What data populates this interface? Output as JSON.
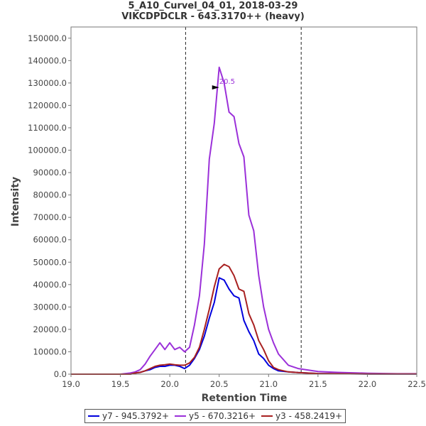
{
  "title_lines": [
    "5_A10_Curvel_04_01, 2018-03-29",
    "VIKCDPDCLR - 643.3170++ (heavy)"
  ],
  "chart_data": {
    "type": "line",
    "xlabel": "Retention Time",
    "ylabel": "Intensity",
    "xlim": [
      19.0,
      22.5
    ],
    "ylim": [
      0,
      155000
    ],
    "x_ticks": [
      19.0,
      19.5,
      20.0,
      20.5,
      21.0,
      21.5,
      22.0,
      22.5
    ],
    "x_tick_labels": [
      "19.0",
      "19.5",
      "20.0",
      "20.5",
      "21.0",
      "21.5",
      "22.0",
      "22.5"
    ],
    "y_ticks": [
      0,
      10000,
      20000,
      30000,
      40000,
      50000,
      60000,
      70000,
      80000,
      90000,
      100000,
      110000,
      120000,
      130000,
      140000,
      150000
    ],
    "y_tick_labels": [
      "0.0",
      "10000.0",
      "20000.0",
      "30000.0",
      "40000.0",
      "50000.0",
      "60000.0",
      "70000.0",
      "80000.0",
      "90000.0",
      "100000.0",
      "110000.0",
      "120000.0",
      "130000.0",
      "140000.0",
      "150000.0"
    ],
    "grid": false,
    "legend_position": "bottom",
    "vertical_markers": [
      20.16,
      21.33
    ],
    "peak_annotation": {
      "label": "20.5",
      "x": 20.5,
      "y": 128000,
      "color": "#9b30d9"
    },
    "series": [
      {
        "name": "y7 - 945.3792+",
        "color": "#0000dd",
        "x": [
          19.0,
          19.1,
          19.2,
          19.3,
          19.4,
          19.5,
          19.6,
          19.65,
          19.7,
          19.75,
          19.8,
          19.85,
          19.9,
          19.95,
          20.0,
          20.05,
          20.1,
          20.15,
          20.2,
          20.25,
          20.3,
          20.35,
          20.4,
          20.45,
          20.5,
          20.55,
          20.6,
          20.65,
          20.7,
          20.75,
          20.8,
          20.85,
          20.9,
          20.95,
          21.0,
          21.05,
          21.1,
          21.2,
          21.3,
          21.5,
          21.7,
          22.0,
          22.3,
          22.5
        ],
        "y": [
          0,
          0,
          0,
          0,
          0,
          0,
          0,
          500,
          800,
          1500,
          2000,
          3000,
          3500,
          3500,
          4000,
          4000,
          3500,
          2500,
          4000,
          7000,
          11000,
          17000,
          25000,
          32000,
          43000,
          42000,
          38000,
          35000,
          34000,
          24000,
          19000,
          15000,
          9000,
          7000,
          4000,
          2500,
          1500,
          1000,
          700,
          300,
          200,
          100,
          100,
          100
        ]
      },
      {
        "name": "y5 - 670.3216+",
        "color": "#9b30d9",
        "x": [
          19.0,
          19.1,
          19.2,
          19.3,
          19.4,
          19.5,
          19.6,
          19.65,
          19.7,
          19.75,
          19.8,
          19.85,
          19.9,
          19.95,
          20.0,
          20.05,
          20.1,
          20.15,
          20.2,
          20.25,
          20.3,
          20.35,
          20.4,
          20.45,
          20.5,
          20.55,
          20.6,
          20.65,
          20.7,
          20.75,
          20.8,
          20.85,
          20.9,
          20.95,
          21.0,
          21.05,
          21.1,
          21.2,
          21.3,
          21.5,
          21.7,
          22.0,
          22.3,
          22.5
        ],
        "y": [
          0,
          0,
          0,
          0,
          0,
          0,
          500,
          1000,
          2000,
          4500,
          8000,
          11000,
          14000,
          11000,
          14000,
          11000,
          12000,
          10000,
          12000,
          22000,
          35000,
          58000,
          96000,
          112000,
          137000,
          130000,
          117000,
          115000,
          103000,
          97000,
          71000,
          64000,
          44000,
          30000,
          20000,
          14000,
          9000,
          4000,
          2500,
          1200,
          800,
          400,
          200,
          200
        ]
      },
      {
        "name": "y3 - 458.2419+",
        "color": "#a82020",
        "x": [
          19.0,
          19.1,
          19.2,
          19.3,
          19.4,
          19.5,
          19.6,
          19.65,
          19.7,
          19.75,
          19.8,
          19.85,
          19.9,
          19.95,
          20.0,
          20.05,
          20.1,
          20.15,
          20.2,
          20.25,
          20.3,
          20.35,
          20.4,
          20.45,
          20.5,
          20.55,
          20.6,
          20.65,
          20.7,
          20.75,
          20.8,
          20.85,
          20.9,
          20.95,
          21.0,
          21.05,
          21.1,
          21.2,
          21.3,
          21.5,
          21.7,
          22.0,
          22.3,
          22.5
        ],
        "y": [
          0,
          0,
          0,
          0,
          0,
          0,
          0,
          500,
          800,
          1500,
          2500,
          3500,
          4000,
          4200,
          4500,
          4200,
          4000,
          4000,
          5000,
          7500,
          12000,
          20000,
          29000,
          39000,
          47000,
          49000,
          48000,
          44000,
          38000,
          37000,
          27000,
          22000,
          15000,
          11000,
          6000,
          3000,
          2000,
          1000,
          700,
          300,
          200,
          100,
          100,
          100
        ]
      }
    ]
  }
}
